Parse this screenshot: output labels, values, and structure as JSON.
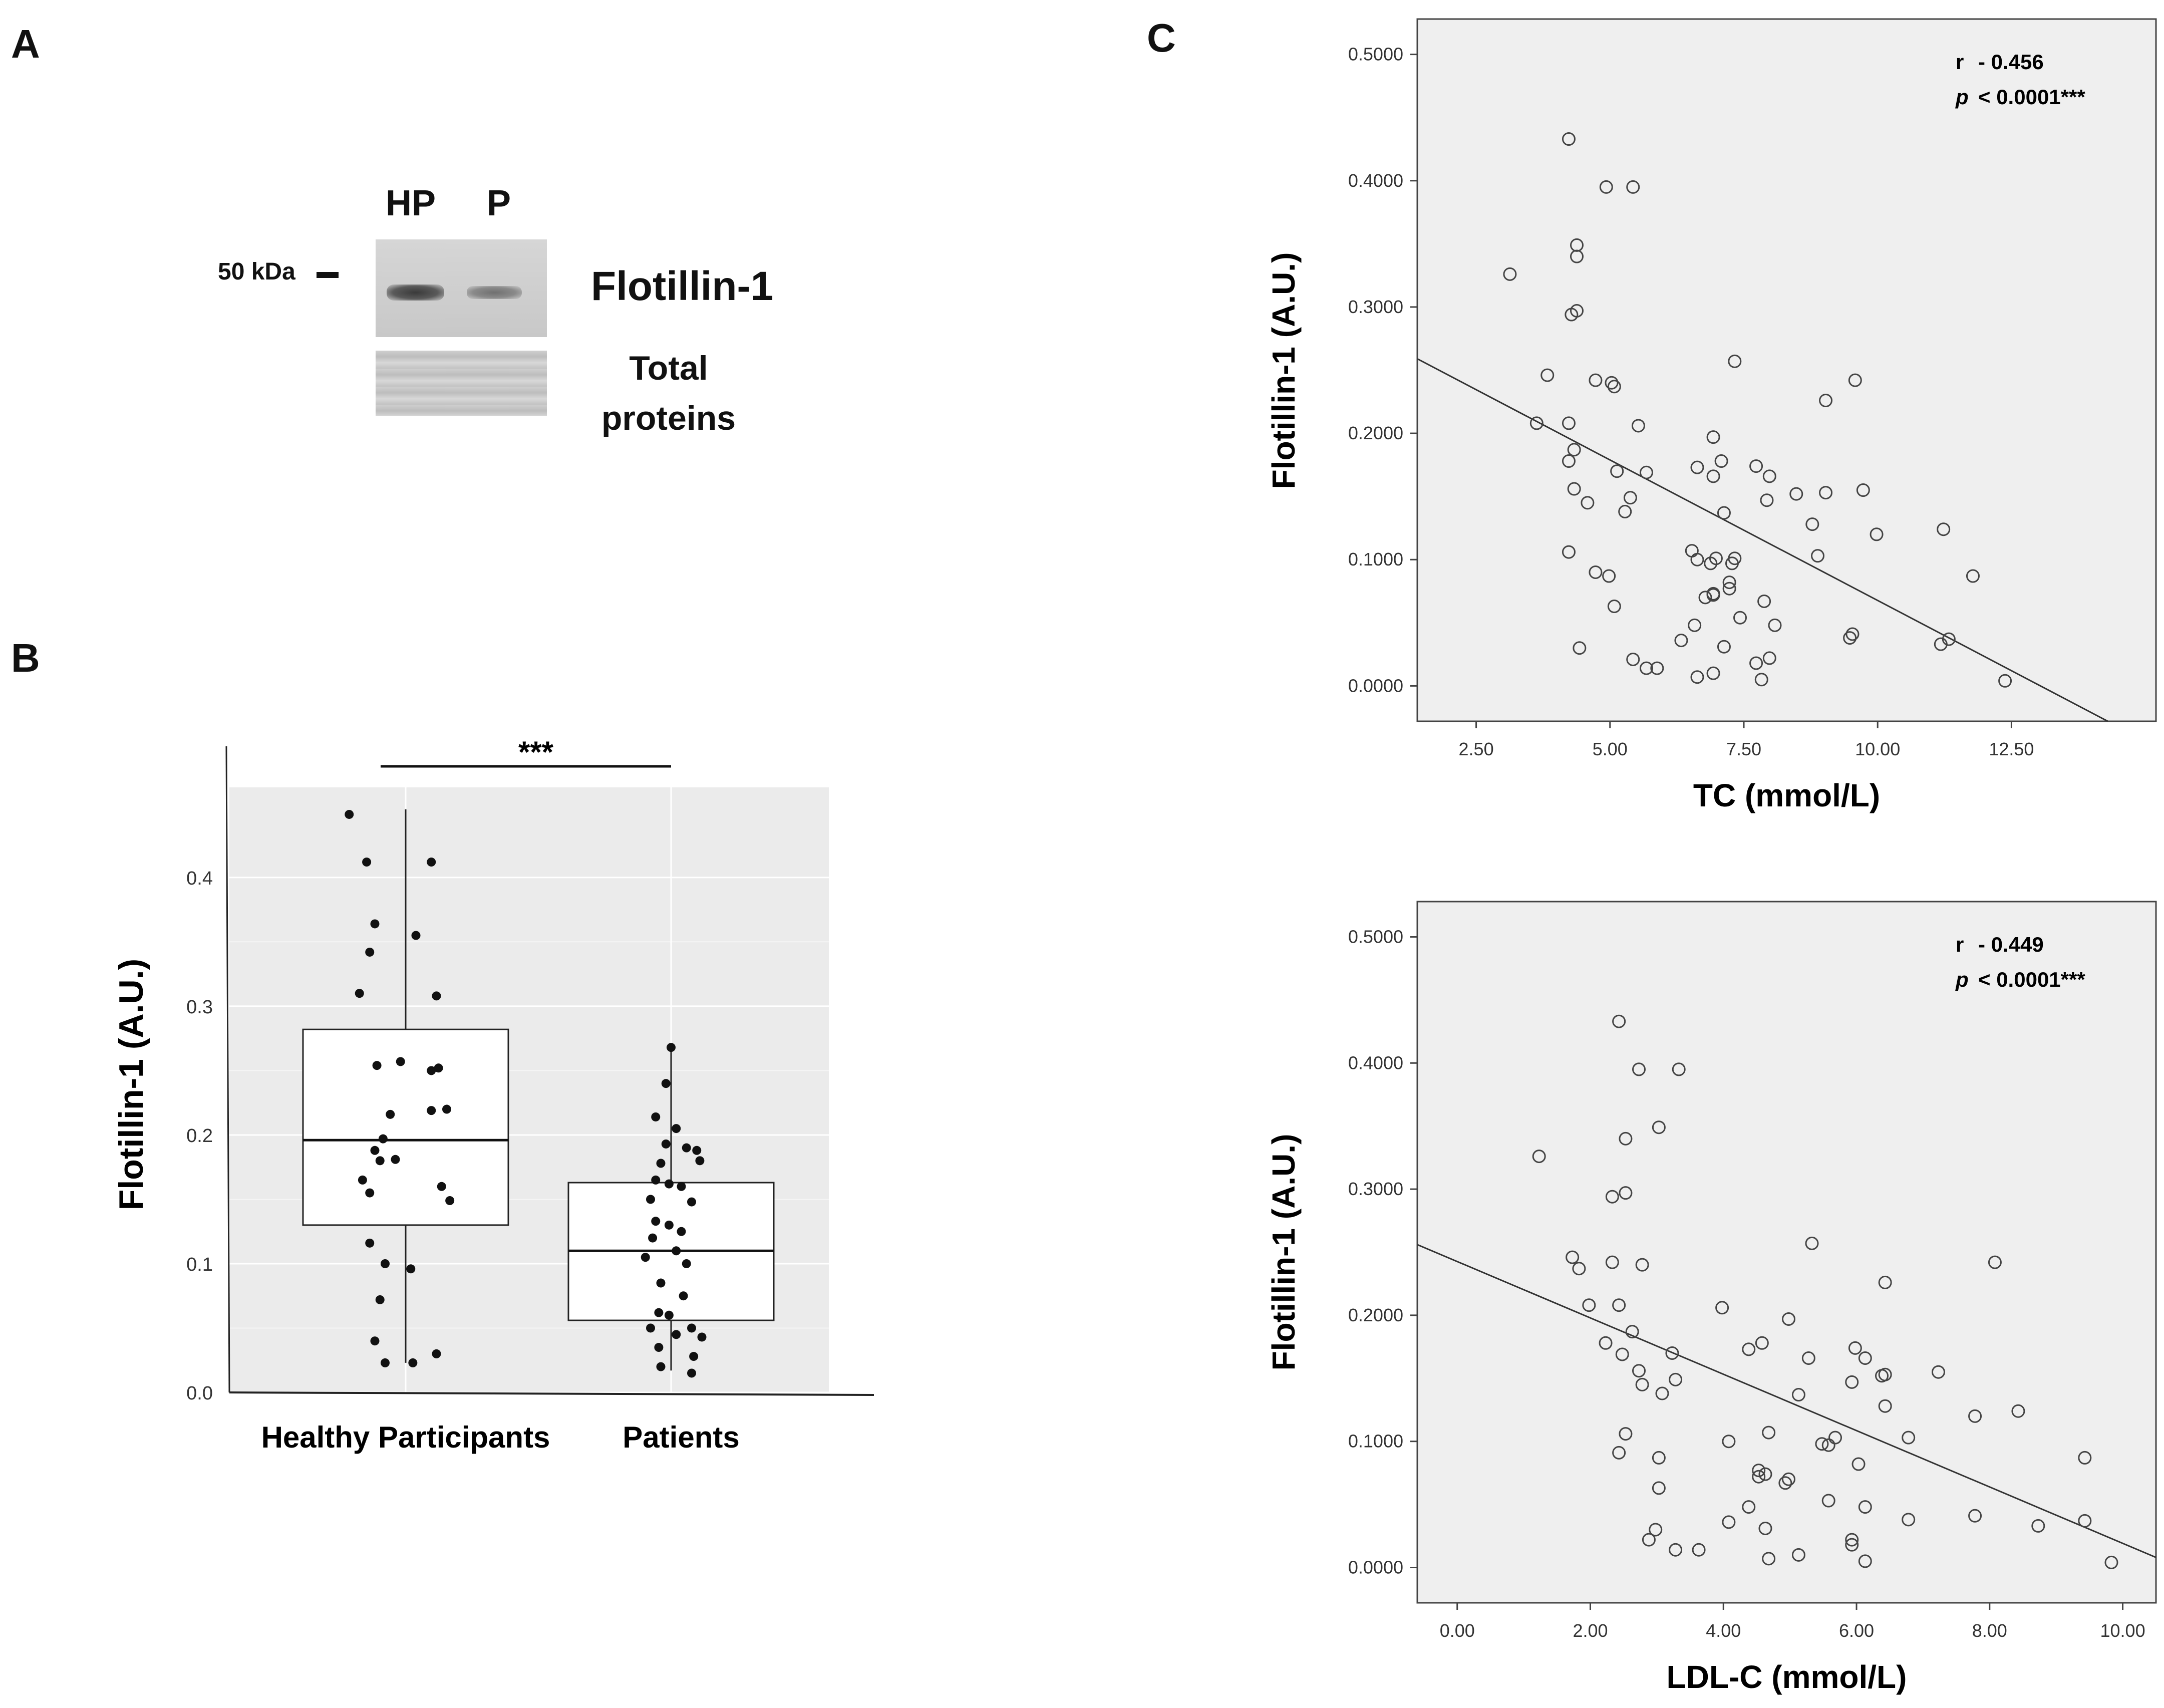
{
  "panels": {
    "a": "A",
    "b": "B",
    "c": "C"
  },
  "blot": {
    "lane_labels": [
      "HP",
      "P"
    ],
    "marker": "50 kDa",
    "protein": "Flotillin-1",
    "loading_line1": "Total",
    "loading_line2": "proteins"
  },
  "chart_data": [
    {
      "type": "box",
      "categories": [
        "Healthy Participants",
        "Patients"
      ],
      "ylabel": "Flotillin-1 (A.U.)",
      "yticks": [
        "0.0",
        "0.1",
        "0.2",
        "0.3",
        "0.4"
      ],
      "ylim": [
        0,
        0.47
      ],
      "significance": "***",
      "boxes": [
        {
          "whisker_low": 0.023,
          "q1": 0.13,
          "median": 0.196,
          "q3": 0.282,
          "whisker_high": 0.453
        },
        {
          "whisker_low": 0.017,
          "q1": 0.056,
          "median": 0.11,
          "q3": 0.163,
          "whisker_high": 0.27
        }
      ],
      "points": [
        [
          [
            -0.55,
            0.449
          ],
          [
            -0.38,
            0.412
          ],
          [
            0.25,
            0.412
          ],
          [
            -0.3,
            0.364
          ],
          [
            0.1,
            0.355
          ],
          [
            -0.35,
            0.342
          ],
          [
            -0.45,
            0.31
          ],
          [
            0.3,
            0.308
          ],
          [
            -0.28,
            0.254
          ],
          [
            -0.05,
            0.257
          ],
          [
            0.25,
            0.25
          ],
          [
            0.32,
            0.252
          ],
          [
            0.4,
            0.22
          ],
          [
            0.25,
            0.219
          ],
          [
            -0.15,
            0.216
          ],
          [
            -0.22,
            0.197
          ],
          [
            -0.3,
            0.188
          ],
          [
            -0.1,
            0.181
          ],
          [
            -0.25,
            0.18
          ],
          [
            0.35,
            0.16
          ],
          [
            -0.42,
            0.165
          ],
          [
            -0.35,
            0.155
          ],
          [
            0.43,
            0.149
          ],
          [
            -0.35,
            0.116
          ],
          [
            0.05,
            0.096
          ],
          [
            -0.2,
            0.1
          ],
          [
            -0.25,
            0.072
          ],
          [
            -0.3,
            0.04
          ],
          [
            0.3,
            0.03
          ],
          [
            -0.2,
            0.023
          ],
          [
            0.07,
            0.023
          ]
        ],
        [
          [
            0.0,
            0.268
          ],
          [
            -0.05,
            0.24
          ],
          [
            -0.15,
            0.214
          ],
          [
            0.05,
            0.205
          ],
          [
            -0.05,
            0.193
          ],
          [
            0.15,
            0.19
          ],
          [
            0.28,
            0.18
          ],
          [
            0.25,
            0.188
          ],
          [
            -0.1,
            0.178
          ],
          [
            -0.15,
            0.165
          ],
          [
            -0.02,
            0.162
          ],
          [
            0.1,
            0.16
          ],
          [
            -0.2,
            0.15
          ],
          [
            0.2,
            0.148
          ],
          [
            -0.15,
            0.133
          ],
          [
            -0.02,
            0.13
          ],
          [
            0.1,
            0.125
          ],
          [
            -0.18,
            0.12
          ],
          [
            0.05,
            0.11
          ],
          [
            -0.25,
            0.105
          ],
          [
            0.15,
            0.1
          ],
          [
            -0.1,
            0.085
          ],
          [
            0.12,
            0.075
          ],
          [
            -0.12,
            0.062
          ],
          [
            -0.02,
            0.06
          ],
          [
            0.2,
            0.05
          ],
          [
            -0.2,
            0.05
          ],
          [
            0.05,
            0.045
          ],
          [
            0.3,
            0.043
          ],
          [
            -0.12,
            0.035
          ],
          [
            0.22,
            0.028
          ],
          [
            -0.1,
            0.02
          ],
          [
            0.2,
            0.015
          ]
        ]
      ]
    },
    {
      "type": "scatter",
      "xlabel": "TC (mmol/L)",
      "ylabel": "Flotillin-1 (A.U.)",
      "xlim": [
        1.4,
        15.2
      ],
      "ylim": [
        -0.028,
        0.528
      ],
      "xticks": [
        "2.50",
        "5.00",
        "7.50",
        "10.00",
        "12.50"
      ],
      "yticks": [
        "0.0000",
        "0.1000",
        "0.2000",
        "0.3000",
        "0.4000",
        "0.5000"
      ],
      "stat_r_label": "r",
      "stat_r": "- 0.456",
      "stat_p_label": "p",
      "stat_p": "< 0.0001***",
      "fit": {
        "x0": 1.4,
        "y0": 0.259,
        "x1": 14.3,
        "y1": -0.028
      },
      "points": [
        [
          4.23,
          0.433
        ],
        [
          4.93,
          0.395
        ],
        [
          5.43,
          0.395
        ],
        [
          4.38,
          0.349
        ],
        [
          4.38,
          0.34
        ],
        [
          3.13,
          0.326
        ],
        [
          4.28,
          0.294
        ],
        [
          4.38,
          0.297
        ],
        [
          3.83,
          0.246
        ],
        [
          4.73,
          0.242
        ],
        [
          5.03,
          0.24
        ],
        [
          5.08,
          0.237
        ],
        [
          7.33,
          0.257
        ],
        [
          9.58,
          0.242
        ],
        [
          9.03,
          0.226
        ],
        [
          3.63,
          0.208
        ],
        [
          4.23,
          0.208
        ],
        [
          5.53,
          0.206
        ],
        [
          6.93,
          0.197
        ],
        [
          4.33,
          0.187
        ],
        [
          4.23,
          0.178
        ],
        [
          7.08,
          0.178
        ],
        [
          7.73,
          0.174
        ],
        [
          6.63,
          0.173
        ],
        [
          5.13,
          0.17
        ],
        [
          5.68,
          0.169
        ],
        [
          7.98,
          0.166
        ],
        [
          6.93,
          0.166
        ],
        [
          4.33,
          0.156
        ],
        [
          5.38,
          0.149
        ],
        [
          8.48,
          0.152
        ],
        [
          9.03,
          0.153
        ],
        [
          9.73,
          0.155
        ],
        [
          7.93,
          0.147
        ],
        [
          4.58,
          0.145
        ],
        [
          5.28,
          0.138
        ],
        [
          7.13,
          0.137
        ],
        [
          8.78,
          0.128
        ],
        [
          11.23,
          0.124
        ],
        [
          9.98,
          0.12
        ],
        [
          4.23,
          0.106
        ],
        [
          6.53,
          0.107
        ],
        [
          8.88,
          0.103
        ],
        [
          6.63,
          0.1
        ],
        [
          6.98,
          0.101
        ],
        [
          7.33,
          0.101
        ],
        [
          7.28,
          0.097
        ],
        [
          6.88,
          0.097
        ],
        [
          4.73,
          0.09
        ],
        [
          4.98,
          0.087
        ],
        [
          7.23,
          0.082
        ],
        [
          11.78,
          0.087
        ],
        [
          7.23,
          0.077
        ],
        [
          6.93,
          0.072
        ],
        [
          6.78,
          0.07
        ],
        [
          6.93,
          0.073
        ],
        [
          7.88,
          0.067
        ],
        [
          5.08,
          0.063
        ],
        [
          7.43,
          0.054
        ],
        [
          8.08,
          0.048
        ],
        [
          6.58,
          0.048
        ],
        [
          9.53,
          0.041
        ],
        [
          9.48,
          0.038
        ],
        [
          11.33,
          0.037
        ],
        [
          11.18,
          0.033
        ],
        [
          6.33,
          0.036
        ],
        [
          4.43,
          0.03
        ],
        [
          7.13,
          0.031
        ],
        [
          5.43,
          0.021
        ],
        [
          7.98,
          0.022
        ],
        [
          7.73,
          0.018
        ],
        [
          5.68,
          0.014
        ],
        [
          5.88,
          0.014
        ],
        [
          6.93,
          0.01
        ],
        [
          6.63,
          0.007
        ],
        [
          7.83,
          0.005
        ],
        [
          12.38,
          0.004
        ]
      ]
    },
    {
      "type": "scatter",
      "xlabel": "LDL-C (mmol/L)",
      "ylabel": "Flotillin-1 (A.U.)",
      "xlim": [
        -0.6,
        10.5
      ],
      "ylim": [
        -0.028,
        0.528
      ],
      "xticks": [
        "0.00",
        "2.00",
        "4.00",
        "6.00",
        "8.00",
        "10.00"
      ],
      "yticks": [
        "0.0000",
        "0.1000",
        "0.2000",
        "0.3000",
        "0.4000",
        "0.5000"
      ],
      "stat_r_label": "r",
      "stat_r": "- 0.449",
      "stat_p_label": "p",
      "stat_p": "< 0.0001***",
      "fit": {
        "x0": -0.6,
        "y0": 0.256,
        "x1": 10.5,
        "y1": 0.008
      },
      "points": [
        [
          2.43,
          0.433
        ],
        [
          2.73,
          0.395
        ],
        [
          3.33,
          0.395
        ],
        [
          3.03,
          0.349
        ],
        [
          2.53,
          0.34
        ],
        [
          1.23,
          0.326
        ],
        [
          2.33,
          0.294
        ],
        [
          2.53,
          0.297
        ],
        [
          5.33,
          0.257
        ],
        [
          8.08,
          0.242
        ],
        [
          1.73,
          0.246
        ],
        [
          2.33,
          0.242
        ],
        [
          2.78,
          0.24
        ],
        [
          1.83,
          0.237
        ],
        [
          6.43,
          0.226
        ],
        [
          1.98,
          0.208
        ],
        [
          2.43,
          0.208
        ],
        [
          3.98,
          0.206
        ],
        [
          4.98,
          0.197
        ],
        [
          2.63,
          0.187
        ],
        [
          2.23,
          0.178
        ],
        [
          4.58,
          0.178
        ],
        [
          5.98,
          0.174
        ],
        [
          4.38,
          0.173
        ],
        [
          3.23,
          0.17
        ],
        [
          2.48,
          0.169
        ],
        [
          6.13,
          0.166
        ],
        [
          5.28,
          0.166
        ],
        [
          2.73,
          0.156
        ],
        [
          6.38,
          0.152
        ],
        [
          6.43,
          0.153
        ],
        [
          7.23,
          0.155
        ],
        [
          5.93,
          0.147
        ],
        [
          3.28,
          0.149
        ],
        [
          2.78,
          0.145
        ],
        [
          3.08,
          0.138
        ],
        [
          5.13,
          0.137
        ],
        [
          6.43,
          0.128
        ],
        [
          8.43,
          0.124
        ],
        [
          7.78,
          0.12
        ],
        [
          2.53,
          0.106
        ],
        [
          4.68,
          0.107
        ],
        [
          6.78,
          0.103
        ],
        [
          5.68,
          0.103
        ],
        [
          5.48,
          0.098
        ],
        [
          5.58,
          0.097
        ],
        [
          4.08,
          0.1
        ],
        [
          2.43,
          0.091
        ],
        [
          3.03,
          0.087
        ],
        [
          9.43,
          0.087
        ],
        [
          6.03,
          0.082
        ],
        [
          4.53,
          0.077
        ],
        [
          4.98,
          0.07
        ],
        [
          4.53,
          0.072
        ],
        [
          4.63,
          0.074
        ],
        [
          4.93,
          0.067
        ],
        [
          3.03,
          0.063
        ],
        [
          5.58,
          0.053
        ],
        [
          4.38,
          0.048
        ],
        [
          6.13,
          0.048
        ],
        [
          7.78,
          0.041
        ],
        [
          6.78,
          0.038
        ],
        [
          9.43,
          0.037
        ],
        [
          4.08,
          0.036
        ],
        [
          8.73,
          0.033
        ],
        [
          2.98,
          0.03
        ],
        [
          4.63,
          0.031
        ],
        [
          2.88,
          0.022
        ],
        [
          5.93,
          0.022
        ],
        [
          5.93,
          0.018
        ],
        [
          3.28,
          0.014
        ],
        [
          3.63,
          0.014
        ],
        [
          5.13,
          0.01
        ],
        [
          4.68,
          0.007
        ],
        [
          6.13,
          0.005
        ],
        [
          9.83,
          0.004
        ]
      ]
    }
  ]
}
